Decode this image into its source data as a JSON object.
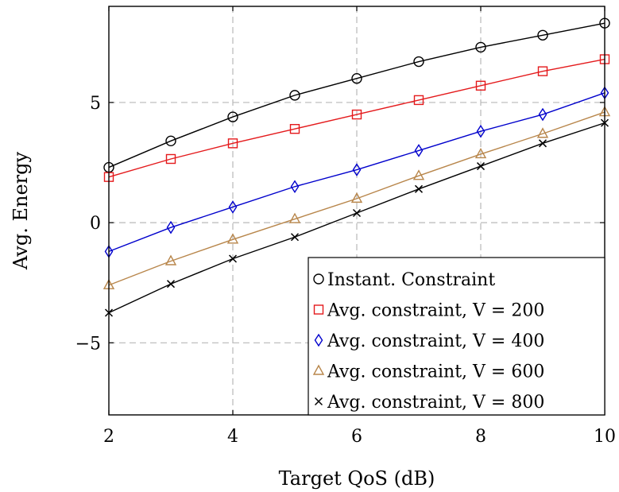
{
  "chart_data": {
    "type": "line",
    "title": "",
    "xlabel": "Target QoS (dB)",
    "ylabel": "Avg. Energy",
    "xlim": [
      2,
      10
    ],
    "ylim": [
      -8,
      9
    ],
    "xticks": [
      2,
      4,
      6,
      8,
      10
    ],
    "xtick_labels": [
      "2",
      "4",
      "6",
      "8",
      "10"
    ],
    "yticks": [
      -5,
      0,
      5
    ],
    "ytick_labels": [
      "−5",
      "0",
      "5"
    ],
    "grid": true,
    "legend_position": "bottom-right",
    "x": [
      2,
      3,
      4,
      5,
      6,
      7,
      8,
      9,
      10
    ],
    "series": [
      {
        "name": "Instant. Constraint",
        "color": "#000000",
        "marker": "circle",
        "values": [
          2.3,
          3.4,
          4.4,
          5.3,
          6.0,
          6.7,
          7.3,
          7.8,
          8.3
        ]
      },
      {
        "name": "Avg. constraint, V = 200",
        "color": "#e41a1c",
        "marker": "square",
        "values": [
          1.9,
          2.65,
          3.3,
          3.9,
          4.5,
          5.1,
          5.7,
          6.3,
          6.8
        ]
      },
      {
        "name": "Avg. constraint, V = 400",
        "color": "#0000cc",
        "marker": "diamond",
        "values": [
          -1.2,
          -0.2,
          0.65,
          1.5,
          2.2,
          3.0,
          3.8,
          4.5,
          5.4
        ]
      },
      {
        "name": "Avg. constraint, V = 600",
        "color": "#b8864b",
        "marker": "triangle",
        "values": [
          -2.6,
          -1.6,
          -0.7,
          0.15,
          1.0,
          1.95,
          2.85,
          3.7,
          4.6
        ]
      },
      {
        "name": "Avg. constraint, V = 800",
        "color": "#000000",
        "marker": "cross",
        "values": [
          -3.75,
          -2.55,
          -1.5,
          -0.6,
          0.4,
          1.4,
          2.35,
          3.3,
          4.15
        ]
      }
    ]
  }
}
